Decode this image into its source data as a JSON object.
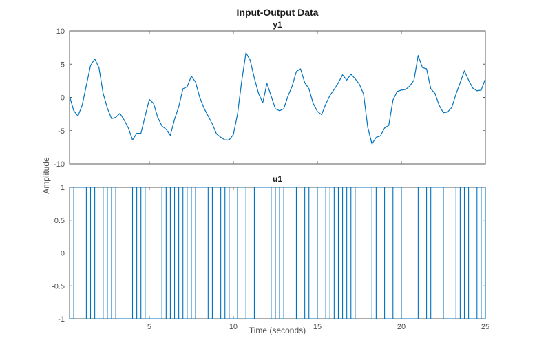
{
  "figure": {
    "title": "Input-Output Data",
    "xlabel": "Time (seconds)",
    "ylabel": "Amplitude",
    "background": "#ffffff",
    "line_color": "#0072BD",
    "axis_color": "#595959",
    "tick_text_color": "#4d4d4d",
    "title_color": "#1a1a1a"
  },
  "chart_data": [
    {
      "type": "line",
      "title": "y1",
      "xlim": [
        0.25,
        25
      ],
      "ylim": [
        -10,
        10
      ],
      "xticks": [
        5,
        10,
        15,
        20,
        25
      ],
      "yticks": [
        -10,
        -5,
        0,
        5,
        10
      ],
      "x_tick_labels": false,
      "grid": false,
      "x_start": 0.25,
      "x_step": 0.25,
      "values": [
        0.2,
        -2.0,
        -2.8,
        -1.2,
        1.8,
        4.8,
        5.8,
        4.5,
        0.6,
        -1.6,
        -3.2,
        -3.0,
        -2.4,
        -3.4,
        -4.6,
        -6.4,
        -5.4,
        -5.4,
        -2.8,
        -0.3,
        -0.9,
        -3.0,
        -4.3,
        -4.8,
        -5.7,
        -3.3,
        -1.4,
        1.3,
        1.6,
        3.2,
        2.3,
        0.0,
        -1.6,
        -2.8,
        -4.0,
        -5.5,
        -6.0,
        -6.4,
        -6.4,
        -5.6,
        -2.5,
        2.5,
        6.7,
        5.6,
        2.9,
        0.6,
        -0.8,
        2.1,
        0.2,
        -1.7,
        -2.0,
        -1.7,
        0.2,
        1.7,
        3.9,
        4.3,
        2.2,
        1.3,
        -0.9,
        -2.1,
        -2.6,
        -1.0,
        0.3,
        1.2,
        2.2,
        3.4,
        2.6,
        3.5,
        2.8,
        2.0,
        0.5,
        -4.5,
        -7.0,
        -6.0,
        -5.8,
        -4.6,
        -4.2,
        -0.4,
        0.9,
        1.1,
        1.2,
        1.7,
        2.6,
        6.3,
        4.5,
        4.3,
        1.3,
        0.6,
        -1.2,
        -2.3,
        -2.2,
        -1.5,
        0.5,
        2.2,
        4.0,
        2.6,
        1.4,
        1.0,
        1.1,
        2.8
      ]
    },
    {
      "type": "step",
      "title": "u1",
      "xlim": [
        0.25,
        25
      ],
      "ylim": [
        -1,
        1
      ],
      "xticks": [
        5,
        10,
        15,
        20,
        25
      ],
      "yticks": [
        -1,
        -0.5,
        0,
        0.5,
        1
      ],
      "x_tick_labels": true,
      "grid": false,
      "t_start": 0.25,
      "t_end": 25,
      "start_level": -1,
      "levels": [
        -1,
        1
      ],
      "transitions": [
        0.5,
        1.25,
        1.5,
        1.75,
        2.25,
        2.5,
        2.75,
        3.0,
        4.0,
        4.25,
        4.5,
        4.75,
        5.75,
        6.0,
        6.25,
        6.5,
        6.75,
        7.0,
        7.25,
        7.5,
        7.75,
        8.5,
        8.75,
        9.25,
        9.5,
        9.75,
        10.25,
        10.75,
        11.25,
        12.25,
        12.5,
        12.75,
        13.0,
        13.75,
        14.25,
        14.5,
        15.0,
        15.5,
        15.75,
        16.0,
        16.25,
        16.5,
        16.75,
        17.0,
        17.25,
        18.25,
        18.5,
        19.0,
        19.5,
        20.0,
        21.0,
        21.5,
        21.75,
        22.5,
        23.25,
        23.5,
        23.75,
        24.0,
        24.5,
        24.75,
        25.0
      ]
    }
  ]
}
